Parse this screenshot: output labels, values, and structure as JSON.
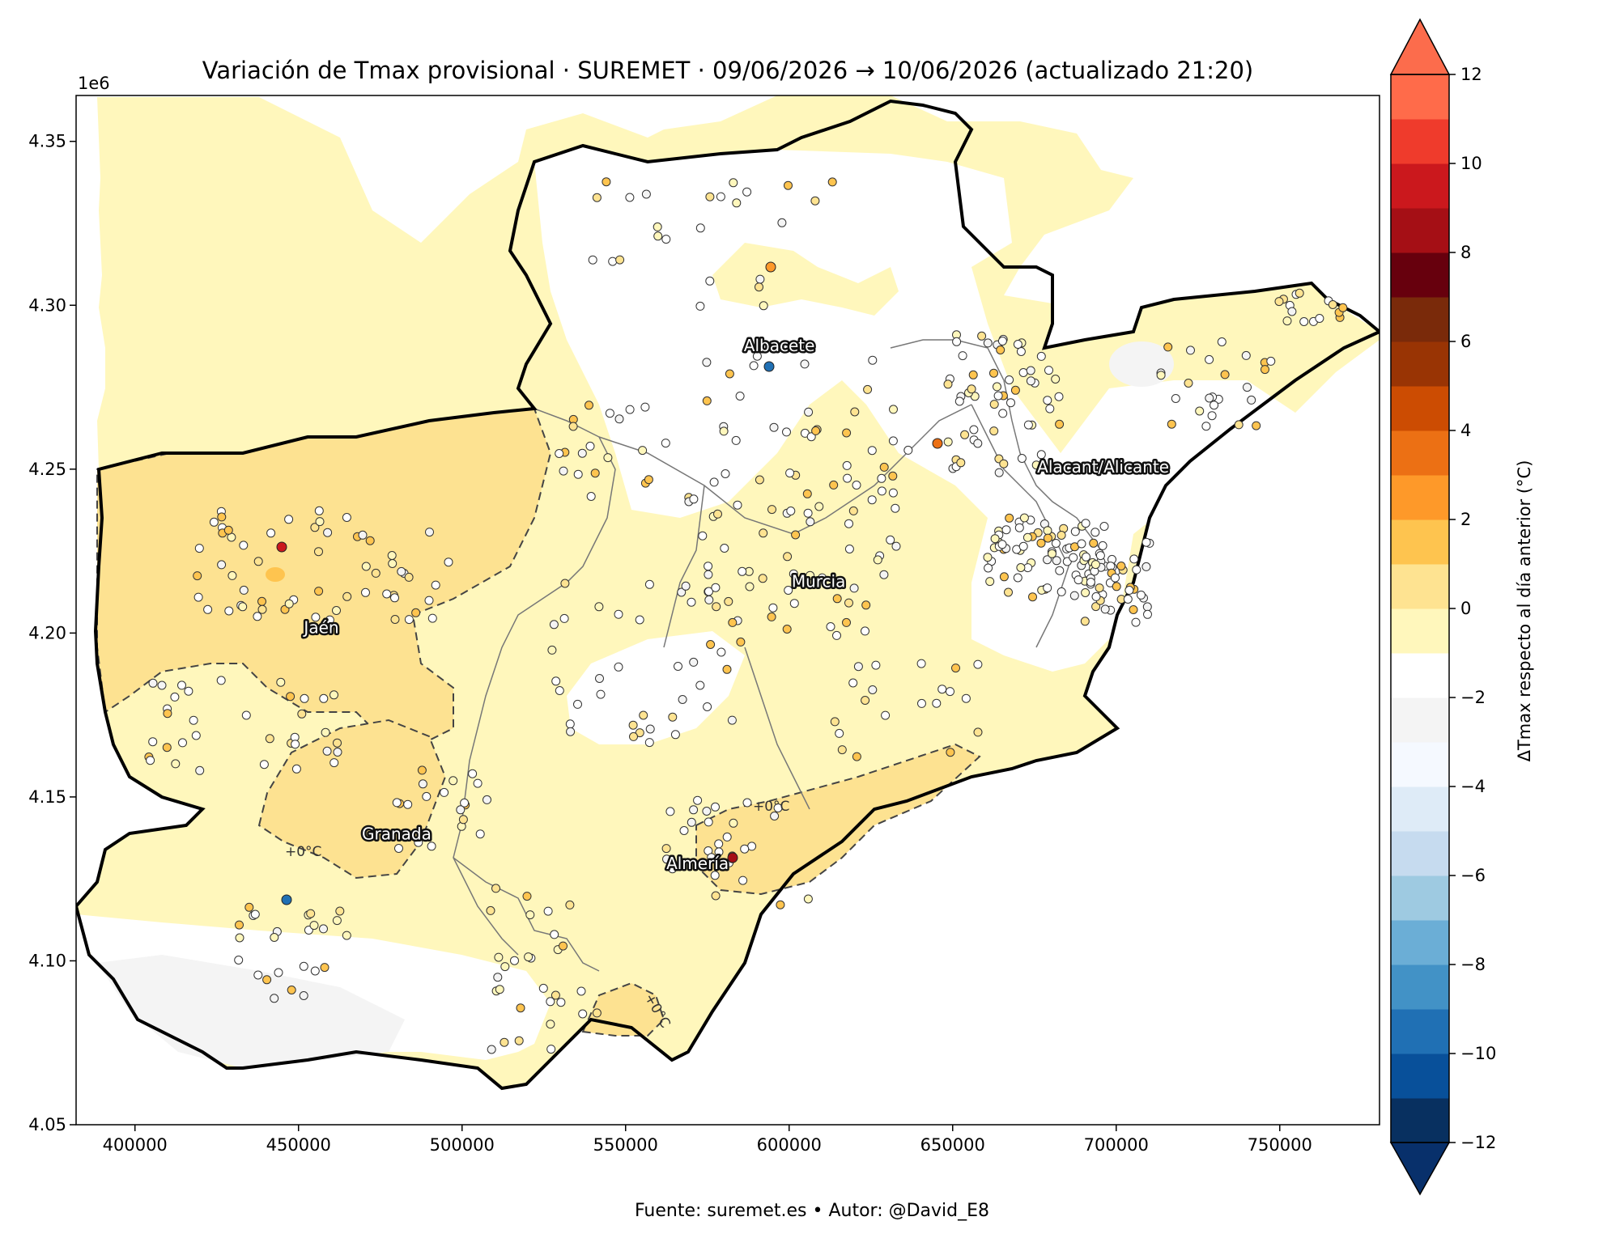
{
  "title": "Variación de Tmax provisional · SUREMET · 09/06/2026 → 10/06/2026 (actualizado 21:20)",
  "footer": "Fuente: suremet.es   •   Autor: @David_E8",
  "map": {
    "x_ticks": [
      "400000",
      "450000",
      "500000",
      "550000",
      "600000",
      "650000",
      "700000",
      "750000"
    ],
    "y_ticks": [
      "4.05",
      "4.10",
      "4.15",
      "4.20",
      "4.25",
      "4.30",
      "4.35"
    ],
    "y_offset_label": "1e6",
    "cities": [
      {
        "name": "Albacete",
        "x": 597000,
        "y": 4286000
      },
      {
        "name": "Alacant/Alicante",
        "x": 696000,
        "y": 4249000
      },
      {
        "name": "Murcia",
        "x": 609000,
        "y": 4214000
      },
      {
        "name": "Jaén",
        "x": 457000,
        "y": 4200000
      },
      {
        "name": "Granada",
        "x": 480000,
        "y": 4137000
      },
      {
        "name": "Almería",
        "x": 572000,
        "y": 4128000
      }
    ],
    "contour_labels": [
      "+0°C",
      "+0°C",
      "+0°C"
    ]
  },
  "colorbar": {
    "label": "ΔTmax respecto al día anterior (°C)",
    "ticks": [
      "12",
      "10",
      "8",
      "6",
      "4",
      "2",
      "0",
      "−2",
      "−4",
      "−6",
      "−8",
      "−10",
      "−12"
    ],
    "colors": [
      "#083060",
      "#08509a",
      "#2070b4",
      "#4292c6",
      "#6baed6",
      "#9ecae1",
      "#c6dbef",
      "#deebf7",
      "#f5f9ff",
      "#f4f4f4",
      "#ffffff",
      "#fff7bc",
      "#fee391",
      "#fec44f",
      "#fe9929",
      "#ec7014",
      "#cc4c02",
      "#993404",
      "#7a2a0a",
      "#67000d",
      "#a50f15",
      "#cb181d",
      "#ef3b2c",
      "#ff6b4a"
    ],
    "under_color": "#08306b",
    "over_color": "#fc6c4c"
  },
  "colors": {
    "band_pos_0_1": "#fff7bc",
    "band_pos_1_2": "#fde291",
    "band_neg": "#ffffff",
    "band_neg2": "#f4f4f4"
  }
}
